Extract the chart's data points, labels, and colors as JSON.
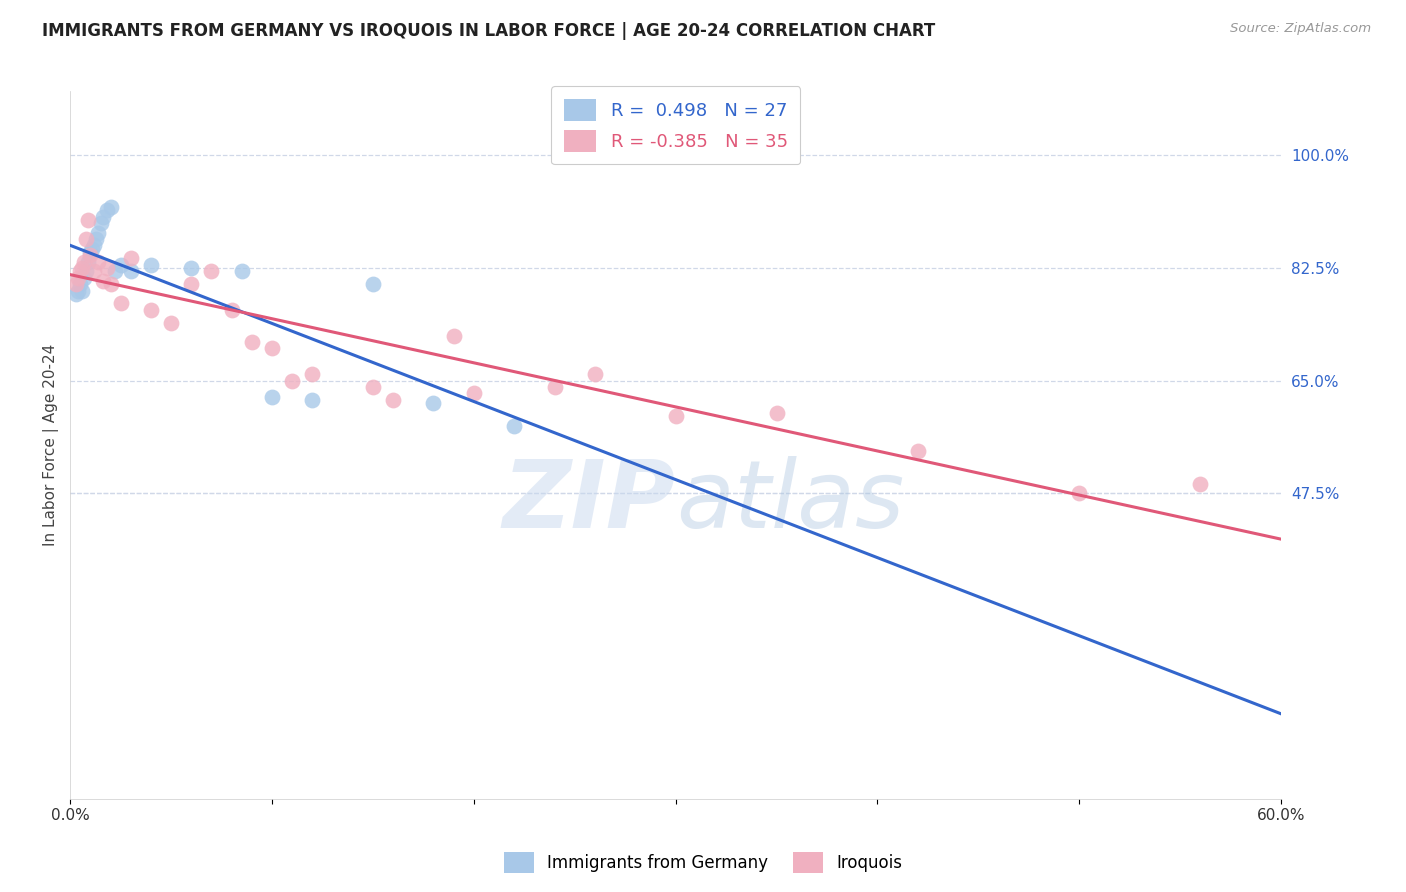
{
  "title": "IMMIGRANTS FROM GERMANY VS IROQUOIS IN LABOR FORCE | AGE 20-24 CORRELATION CHART",
  "source": "Source: ZipAtlas.com",
  "ylabel": "In Labor Force | Age 20-24",
  "xlim": [
    0.0,
    0.6
  ],
  "ylim": [
    0.0,
    1.1
  ],
  "ytick_labels": [
    "100.0%",
    "82.5%",
    "65.0%",
    "47.5%"
  ],
  "ytick_positions": [
    1.0,
    0.825,
    0.65,
    0.475
  ],
  "blue_color": "#a8c8e8",
  "pink_color": "#f0b0c0",
  "blue_line_color": "#3366cc",
  "pink_line_color": "#e05878",
  "legend_blue_label": "Immigrants from Germany",
  "legend_pink_label": "Iroquois",
  "r_blue": 0.498,
  "n_blue": 27,
  "r_pink": -0.385,
  "n_pink": 35,
  "blue_x": [
    0.003,
    0.004,
    0.005,
    0.006,
    0.007,
    0.008,
    0.009,
    0.01,
    0.011,
    0.012,
    0.013,
    0.014,
    0.015,
    0.016,
    0.018,
    0.02,
    0.022,
    0.025,
    0.03,
    0.04,
    0.06,
    0.085,
    0.1,
    0.12,
    0.15,
    0.18,
    0.22
  ],
  "blue_y": [
    0.785,
    0.79,
    0.8,
    0.79,
    0.81,
    0.82,
    0.835,
    0.85,
    0.855,
    0.86,
    0.87,
    0.88,
    0.895,
    0.905,
    0.915,
    0.92,
    0.82,
    0.83,
    0.82,
    0.83,
    0.825,
    0.82,
    0.625,
    0.62,
    0.8,
    0.615,
    0.58
  ],
  "pink_x": [
    0.003,
    0.004,
    0.005,
    0.006,
    0.007,
    0.008,
    0.009,
    0.01,
    0.012,
    0.014,
    0.016,
    0.018,
    0.02,
    0.025,
    0.03,
    0.04,
    0.05,
    0.06,
    0.07,
    0.08,
    0.09,
    0.1,
    0.11,
    0.12,
    0.15,
    0.16,
    0.19,
    0.2,
    0.24,
    0.26,
    0.3,
    0.35,
    0.42,
    0.5,
    0.56
  ],
  "pink_y": [
    0.8,
    0.81,
    0.82,
    0.825,
    0.835,
    0.87,
    0.9,
    0.845,
    0.82,
    0.835,
    0.805,
    0.825,
    0.8,
    0.77,
    0.84,
    0.76,
    0.74,
    0.8,
    0.82,
    0.76,
    0.71,
    0.7,
    0.65,
    0.66,
    0.64,
    0.62,
    0.72,
    0.63,
    0.64,
    0.66,
    0.595,
    0.6,
    0.54,
    0.475,
    0.49
  ],
  "watermark_zip": "ZIP",
  "watermark_atlas": "atlas",
  "background_color": "#ffffff",
  "grid_color": "#d0d8e8"
}
